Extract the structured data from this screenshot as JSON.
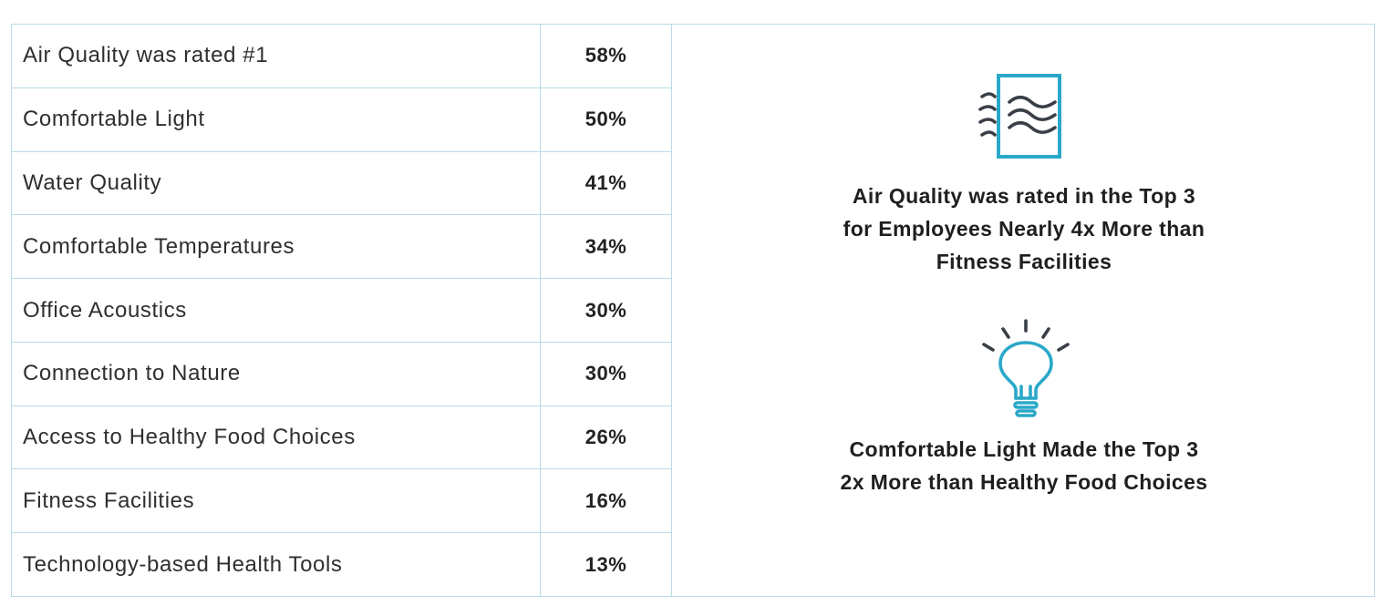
{
  "rows": [
    {
      "label": "Air Quality was rated #1",
      "value": "58%"
    },
    {
      "label": "Comfortable Light",
      "value": "50%"
    },
    {
      "label": "Water Quality",
      "value": "41%"
    },
    {
      "label": "Comfortable Temperatures",
      "value": "34%"
    },
    {
      "label": "Office Acoustics",
      "value": "30%"
    },
    {
      "label": "Connection to Nature",
      "value": "30%"
    },
    {
      "label": "Access to Healthy Food Choices",
      "value": "26%"
    },
    {
      "label": "Fitness Facilities",
      "value": "16%"
    },
    {
      "label": "Technology-based Health Tools",
      "value": "13%"
    }
  ],
  "callouts": {
    "air": {
      "icon": "air-window-icon",
      "lines": [
        "Air Quality was rated in the Top 3",
        "for Employees Nearly 4x More than",
        "Fitness Facilities"
      ]
    },
    "light": {
      "icon": "lightbulb-icon",
      "lines": [
        "Comfortable Light Made the Top 3",
        "2x More than Healthy Food Choices"
      ]
    }
  },
  "colors": {
    "accent": "#2aa8c8",
    "icon_dark": "#3a3f47",
    "border": "#b9dbe6"
  }
}
